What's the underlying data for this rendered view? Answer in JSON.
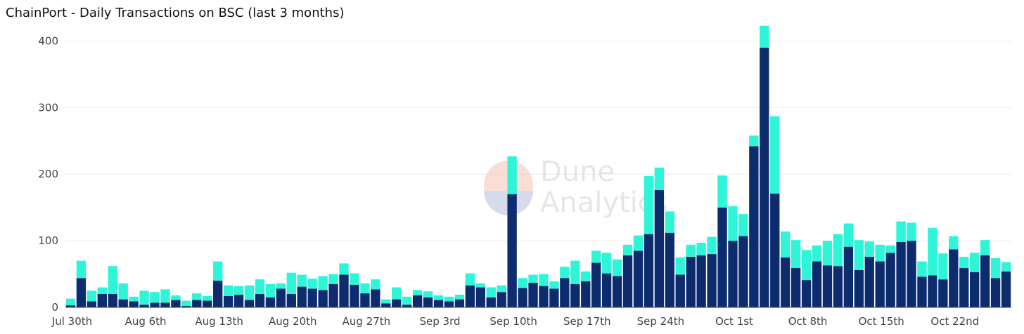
{
  "chart_data": {
    "type": "bar",
    "stacked": true,
    "title": "ChainPort - Daily Transactions on BSC (last 3 months)",
    "xlabel": "",
    "ylabel": "",
    "ylim": [
      0,
      430
    ],
    "yticks": [
      0,
      100,
      200,
      300,
      400
    ],
    "xtick_labels": [
      "Jul 30th",
      "Aug 6th",
      "Aug 13th",
      "Aug 20th",
      "Aug 27th",
      "Sep 3rd",
      "Sep 10th",
      "Sep 17th",
      "Sep 24th",
      "Oct 1st",
      "Oct 8th",
      "Oct 15th",
      "Oct 22nd"
    ],
    "xtick_every": 7,
    "grid": true,
    "legend": "none",
    "colors": {
      "bottom": "#0d2c6e",
      "top": "#2ef5d7"
    },
    "series": [
      {
        "values": [
          3,
          44,
          9,
          20,
          20,
          12,
          9,
          4,
          7,
          7,
          11,
          2,
          11,
          10,
          40,
          17,
          19,
          11,
          20,
          15,
          28,
          20,
          31,
          28,
          26,
          35,
          49,
          34,
          21,
          27,
          6,
          12,
          4,
          18,
          15,
          11,
          9,
          12,
          33,
          30,
          15,
          23,
          170,
          29,
          37,
          32,
          28,
          44,
          35,
          39,
          67,
          51,
          47,
          78,
          85,
          110,
          176,
          112,
          49,
          76,
          78,
          80,
          150,
          100,
          107,
          242,
          390,
          171,
          75,
          59,
          41,
          69,
          63,
          62,
          91,
          56,
          76,
          69,
          82,
          98,
          100,
          46,
          48,
          42,
          87,
          59,
          53,
          78,
          44,
          54
        ]
      },
      {
        "values": [
          10,
          26,
          16,
          10,
          42,
          24,
          7,
          21,
          16,
          20,
          7,
          8,
          10,
          7,
          29,
          16,
          13,
          22,
          22,
          20,
          8,
          32,
          18,
          15,
          21,
          15,
          17,
          17,
          15,
          15,
          6,
          18,
          12,
          8,
          9,
          7,
          7,
          7,
          18,
          6,
          15,
          10,
          57,
          15,
          12,
          18,
          11,
          17,
          35,
          15,
          18,
          31,
          25,
          16,
          23,
          87,
          34,
          32,
          26,
          18,
          19,
          26,
          48,
          52,
          33,
          16,
          33,
          116,
          39,
          42,
          45,
          24,
          37,
          48,
          35,
          45,
          23,
          25,
          11,
          31,
          27,
          23,
          71,
          39,
          20,
          17,
          29,
          23,
          30,
          14
        ]
      }
    ]
  },
  "watermark": {
    "line1": "Dune",
    "line2": "Analytics"
  }
}
